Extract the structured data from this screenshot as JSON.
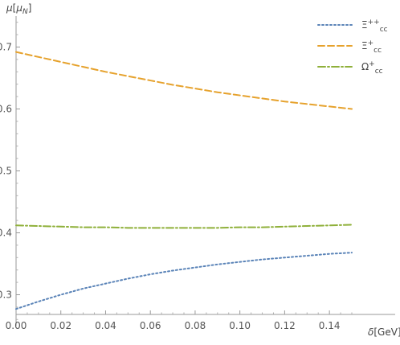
{
  "chart_data": {
    "type": "line",
    "xlabel": "δ[GeV]",
    "ylabel": "μ[μ_N]",
    "xlim": [
      0.0,
      0.15
    ],
    "ylim": [
      0.25,
      0.75
    ],
    "x_ticks": [
      0.0,
      0.02,
      0.04,
      0.06,
      0.08,
      0.1,
      0.12,
      0.14
    ],
    "x_tick_labels": [
      "0.00",
      "0.02",
      "0.04",
      "0.06",
      "0.08",
      "0.10",
      "0.12",
      "0.14"
    ],
    "y_ticks": [
      0.3,
      0.4,
      0.5,
      0.6,
      0.7
    ],
    "y_tick_labels": [
      "0.3",
      "0.4",
      "0.5",
      "0.6",
      "0.7"
    ],
    "grid": false,
    "legend_position": "top-right",
    "x": [
      0.0,
      0.01,
      0.02,
      0.03,
      0.04,
      0.05,
      0.06,
      0.07,
      0.08,
      0.09,
      0.1,
      0.11,
      0.12,
      0.13,
      0.14,
      0.15
    ],
    "series": [
      {
        "name": "Ξ++cc",
        "legend_main": "Ξ",
        "legend_sup": "++",
        "legend_sub": "cc",
        "color": "#5b84b8",
        "dash": "dotted",
        "values": [
          0.277,
          0.289,
          0.3,
          0.31,
          0.318,
          0.326,
          0.333,
          0.339,
          0.344,
          0.349,
          0.353,
          0.357,
          0.36,
          0.363,
          0.366,
          0.368
        ]
      },
      {
        "name": "Ξ+cc",
        "legend_main": "Ξ",
        "legend_sup": "+",
        "legend_sub": "cc",
        "color": "#e6a22d",
        "dash": "dashed",
        "values": [
          0.692,
          0.684,
          0.676,
          0.668,
          0.66,
          0.653,
          0.646,
          0.639,
          0.633,
          0.627,
          0.622,
          0.617,
          0.612,
          0.608,
          0.604,
          0.6
        ]
      },
      {
        "name": "Ω+cc",
        "legend_main": "Ω",
        "legend_sup": "+",
        "legend_sub": "cc",
        "color": "#8fb03a",
        "dash": "dashdot",
        "values": [
          0.412,
          0.411,
          0.41,
          0.409,
          0.409,
          0.408,
          0.408,
          0.408,
          0.408,
          0.408,
          0.409,
          0.409,
          0.41,
          0.411,
          0.412,
          0.413
        ]
      }
    ]
  }
}
